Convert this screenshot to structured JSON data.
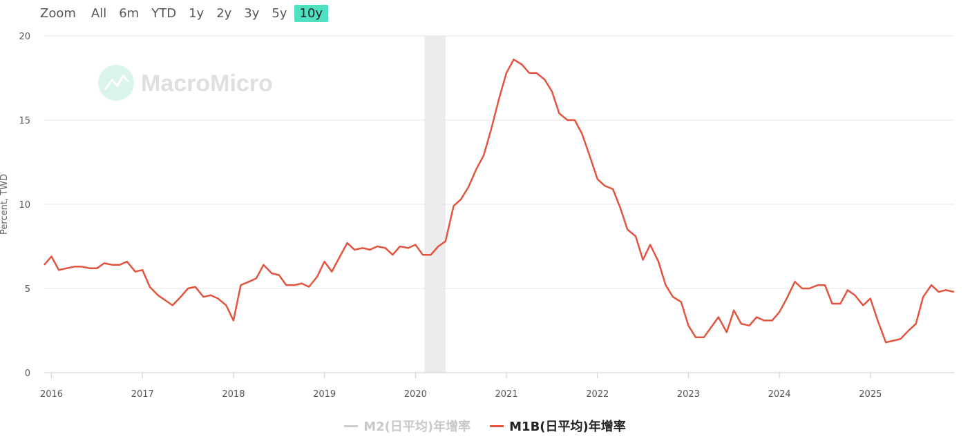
{
  "zoom": {
    "label": "Zoom",
    "buttons": [
      "All",
      "6m",
      "YTD",
      "1y",
      "2y",
      "3y",
      "5y",
      "10y"
    ],
    "active": "10y"
  },
  "watermark": "MacroMicro",
  "colors": {
    "m1b": "#e2543f",
    "m2": "#cccccc",
    "shade": "#ececec",
    "grid": "#e6e6e6",
    "zoom_active": "#4ee0c0",
    "watermark": "#d6f2ea"
  },
  "chart_data": {
    "type": "line",
    "ylabel": "Percent, TWD",
    "ylim": [
      0,
      20
    ],
    "y_ticks": [
      0,
      5,
      10,
      15,
      20
    ],
    "x_range": [
      2015.92,
      2025.92
    ],
    "x_ticks": [
      "2016",
      "2017",
      "2018",
      "2019",
      "2020",
      "2021",
      "2022",
      "2023",
      "2024",
      "2025"
    ],
    "grid": true,
    "legend_position": "bottom",
    "shaded_periods": [
      [
        2020.1,
        2020.33
      ]
    ],
    "series": [
      {
        "name": "M2(日平均)年增率",
        "visible": false,
        "x": [],
        "y": []
      },
      {
        "name": "M1B(日平均)年增率",
        "visible": true,
        "x": [
          2015.92,
          2016.0,
          2016.08,
          2016.17,
          2016.25,
          2016.33,
          2016.42,
          2016.5,
          2016.58,
          2016.67,
          2016.75,
          2016.83,
          2016.92,
          2017.0,
          2017.08,
          2017.17,
          2017.25,
          2017.33,
          2017.42,
          2017.5,
          2017.58,
          2017.67,
          2017.75,
          2017.83,
          2017.92,
          2018.0,
          2018.08,
          2018.17,
          2018.25,
          2018.33,
          2018.42,
          2018.5,
          2018.58,
          2018.67,
          2018.75,
          2018.83,
          2018.92,
          2019.0,
          2019.08,
          2019.17,
          2019.25,
          2019.33,
          2019.42,
          2019.5,
          2019.58,
          2019.67,
          2019.75,
          2019.83,
          2019.92,
          2020.0,
          2020.08,
          2020.17,
          2020.25,
          2020.33,
          2020.42,
          2020.5,
          2020.58,
          2020.67,
          2020.75,
          2020.83,
          2020.92,
          2021.0,
          2021.08,
          2021.17,
          2021.25,
          2021.33,
          2021.42,
          2021.5,
          2021.58,
          2021.67,
          2021.75,
          2021.83,
          2021.92,
          2022.0,
          2022.08,
          2022.17,
          2022.25,
          2022.33,
          2022.42,
          2022.5,
          2022.58,
          2022.67,
          2022.75,
          2022.83,
          2022.92,
          2023.0,
          2023.08,
          2023.17,
          2023.25,
          2023.33,
          2023.42,
          2023.5,
          2023.58,
          2023.67,
          2023.75,
          2023.83,
          2023.92,
          2024.0,
          2024.08,
          2024.17,
          2024.25,
          2024.33,
          2024.42,
          2024.5,
          2024.58,
          2024.67,
          2024.75,
          2024.83,
          2024.92,
          2025.0,
          2025.08,
          2025.17,
          2025.25,
          2025.33,
          2025.42,
          2025.5,
          2025.58,
          2025.67,
          2025.75,
          2025.83,
          2025.92
        ],
        "y": [
          6.4,
          6.9,
          6.1,
          6.2,
          6.3,
          6.3,
          6.2,
          6.2,
          6.5,
          6.4,
          6.4,
          6.6,
          6.0,
          6.1,
          5.1,
          4.6,
          4.3,
          4.0,
          4.5,
          5.0,
          5.1,
          4.5,
          4.6,
          4.4,
          4.0,
          3.1,
          5.2,
          5.4,
          5.6,
          6.4,
          5.9,
          5.8,
          5.2,
          5.2,
          5.3,
          5.1,
          5.7,
          6.6,
          6.0,
          6.9,
          7.7,
          7.3,
          7.4,
          7.3,
          7.5,
          7.4,
          7.0,
          7.5,
          7.4,
          7.6,
          7.0,
          7.0,
          7.5,
          7.8,
          9.9,
          10.3,
          11.0,
          12.1,
          12.9,
          14.4,
          16.3,
          17.8,
          18.6,
          18.3,
          17.8,
          17.8,
          17.4,
          16.7,
          15.4,
          15.0,
          15.0,
          14.2,
          12.8,
          11.5,
          11.1,
          10.9,
          9.8,
          8.5,
          8.1,
          6.7,
          7.6,
          6.6,
          5.2,
          4.5,
          4.2,
          2.8,
          2.1,
          2.1,
          2.7,
          3.3,
          2.4,
          3.7,
          2.9,
          2.8,
          3.3,
          3.1,
          3.1,
          3.6,
          4.4,
          5.4,
          5.0,
          5.0,
          5.2,
          5.2,
          4.1,
          4.1,
          4.9,
          4.6,
          4.0,
          4.4,
          3.1,
          1.8,
          1.9,
          2.0,
          2.5,
          2.9,
          4.5,
          5.2,
          4.8,
          4.9,
          4.8
        ]
      }
    ]
  }
}
